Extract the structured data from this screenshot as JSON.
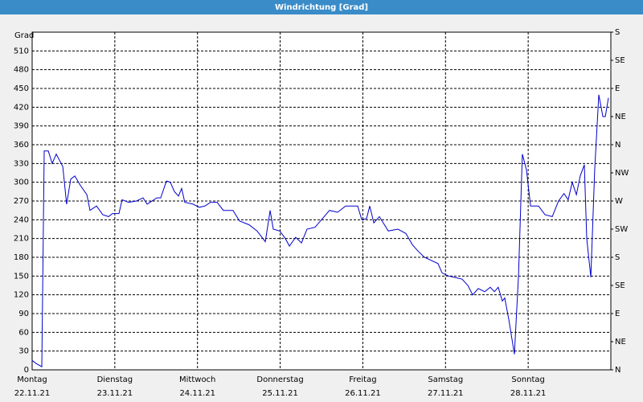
{
  "chart_data": {
    "type": "line",
    "title": "Windrichtung [Grad]",
    "y_label": "Grad",
    "x": [
      0,
      1.2,
      2.8,
      3.5,
      4.7,
      5.8,
      7.0,
      8.9,
      10.0,
      11.2,
      12.4,
      14.0,
      15.9,
      16.8,
      18.7,
      20.5,
      22.2,
      23.3,
      25.2,
      26.1,
      28.0,
      30.3,
      32.2,
      33.4,
      36.2,
      37.3,
      39.0,
      40.1,
      41.3,
      42.5,
      43.4,
      44.3,
      46.7,
      48.5,
      50.2,
      51.8,
      53.7,
      55.5,
      58.3,
      60.2,
      63.0,
      65.3,
      67.7,
      69.1,
      70.0,
      71.9,
      73.5,
      74.7,
      76.5,
      78.2,
      79.8,
      82.1,
      84.0,
      86.3,
      88.7,
      91.0,
      94.5,
      95.7,
      97.1,
      98.0,
      99.2,
      100.8,
      103.4,
      106.2,
      108.5,
      110.4,
      112.0,
      113.9,
      117.8,
      119.0,
      120.9,
      122.5,
      124.8,
      126.5,
      127.9,
      129.5,
      131.4,
      133.0,
      134.2,
      135.3,
      136.5,
      137.2,
      138.4,
      140.0,
      141.2,
      142.3,
      143.5,
      144.7,
      147.0,
      148.9,
      151.0,
      152.8,
      154.4,
      155.6,
      156.8,
      158.0,
      159.1,
      160.3,
      161.0,
      162.2,
      163.3,
      164.5,
      165.7,
      166.4,
      167.3
    ],
    "series": [
      {
        "name": "Windrichtung",
        "color": "#0000cc",
        "values": [
          15,
          10,
          5,
          350,
          350,
          330,
          345,
          325,
          265,
          305,
          310,
          295,
          280,
          255,
          262,
          248,
          245,
          250,
          250,
          272,
          268,
          270,
          275,
          265,
          275,
          275,
          302,
          300,
          285,
          278,
          290,
          268,
          265,
          260,
          262,
          268,
          268,
          255,
          255,
          238,
          232,
          222,
          205,
          255,
          225,
          222,
          210,
          198,
          212,
          203,
          225,
          228,
          240,
          255,
          252,
          262,
          262,
          240,
          242,
          262,
          235,
          245,
          222,
          225,
          218,
          200,
          190,
          180,
          170,
          155,
          150,
          148,
          145,
          135,
          120,
          130,
          125,
          132,
          125,
          132,
          110,
          115,
          80,
          25,
          150,
          345,
          320,
          262,
          262,
          248,
          245,
          270,
          282,
          272,
          300,
          280,
          310,
          328,
          210,
          148,
          320,
          440,
          405,
          405,
          435
        ]
      }
    ],
    "xlim": [
      0,
      168
    ],
    "xticks": [
      {
        "value": 0,
        "label": "Montag"
      },
      {
        "value": 24,
        "label": "Dienstag"
      },
      {
        "value": 48,
        "label": "Mittwoch"
      },
      {
        "value": 72,
        "label": "Donnerstag"
      },
      {
        "value": 96,
        "label": "Freitag"
      },
      {
        "value": 120,
        "label": "Samstag"
      },
      {
        "value": 144,
        "label": "Sonntag"
      }
    ],
    "xtick_dates": [
      "22.11.21",
      "23.11.21",
      "24.11.21",
      "25.11.21",
      "26.11.21",
      "27.11.21",
      "28.11.21"
    ],
    "ylim": [
      0,
      540
    ],
    "yticks": [
      0,
      30,
      60,
      90,
      120,
      150,
      180,
      210,
      240,
      270,
      300,
      330,
      360,
      390,
      420,
      450,
      480,
      510
    ],
    "y2lim": [
      0,
      540
    ],
    "y2ticks": [
      {
        "value": 0,
        "label": "N"
      },
      {
        "value": 45,
        "label": "NE"
      },
      {
        "value": 90,
        "label": "E"
      },
      {
        "value": 135,
        "label": "SE"
      },
      {
        "value": 180,
        "label": "S"
      },
      {
        "value": 225,
        "label": "SW"
      },
      {
        "value": 270,
        "label": "W"
      },
      {
        "value": 315,
        "label": "NW"
      },
      {
        "value": 360,
        "label": "N"
      },
      {
        "value": 405,
        "label": "NE"
      },
      {
        "value": 450,
        "label": "E"
      },
      {
        "value": 495,
        "label": "SE"
      },
      {
        "value": 540,
        "label": "S"
      }
    ],
    "grid": true
  }
}
